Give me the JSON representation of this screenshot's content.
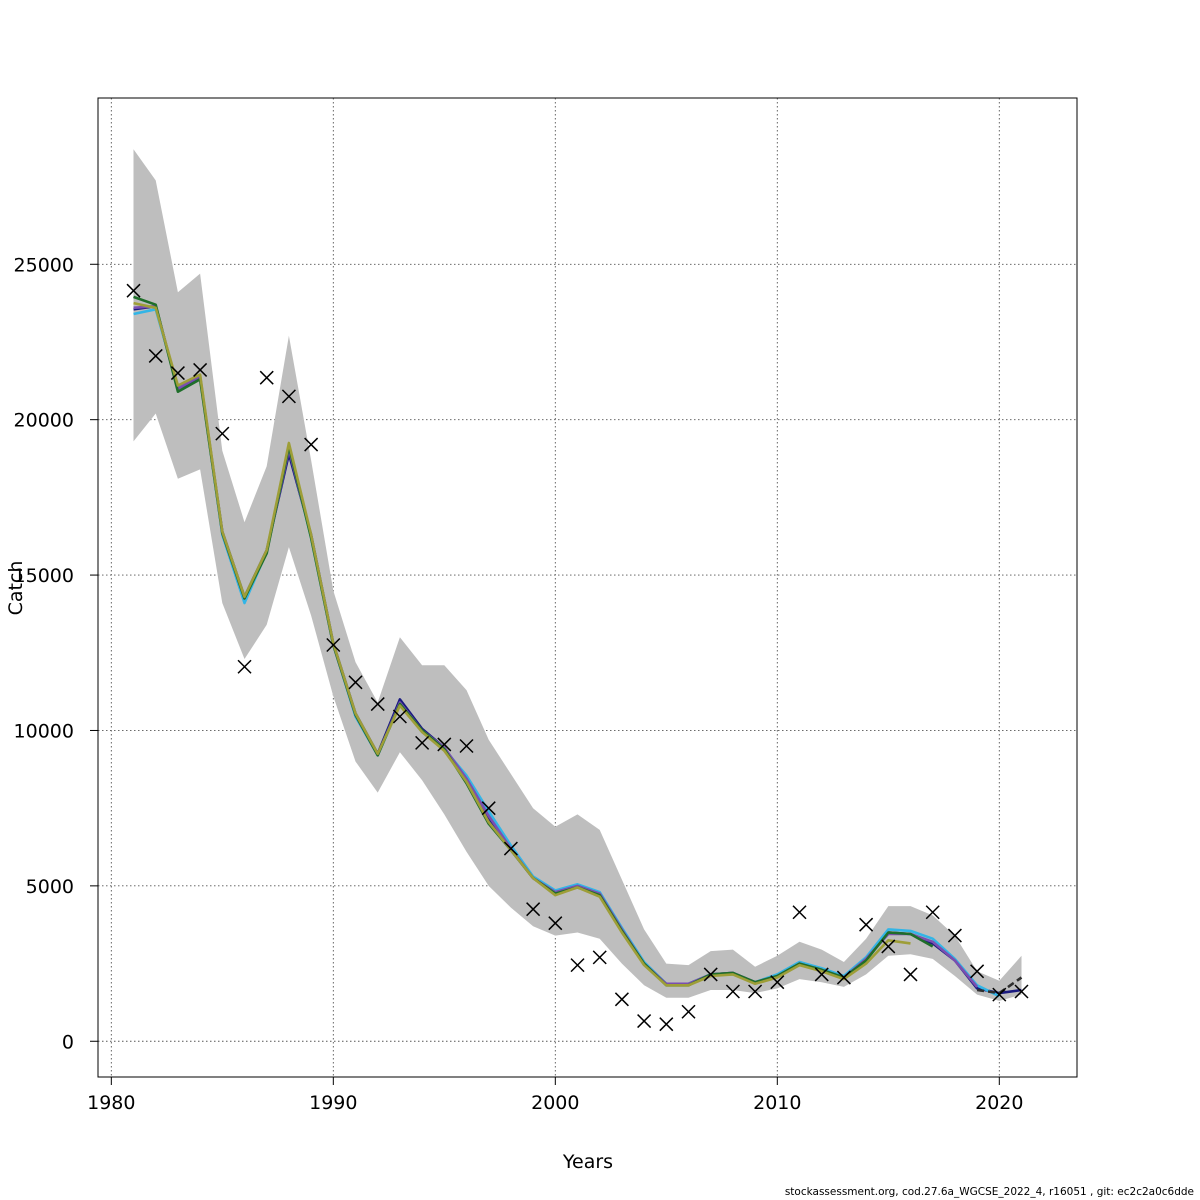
{
  "chart_data": {
    "type": "line",
    "title": "",
    "xlabel": "Years",
    "ylabel": "Catch",
    "xlim": [
      1980,
      2023
    ],
    "ylim": [
      -1100,
      30000
    ],
    "grid": true,
    "x_ticks": [
      1980,
      1990,
      2000,
      2010,
      2020
    ],
    "y_ticks": [
      0,
      5000,
      10000,
      15000,
      20000,
      25000
    ],
    "band": {
      "x": [
        1981,
        1982,
        1983,
        1984,
        1985,
        1986,
        1987,
        1988,
        1989,
        1990,
        1991,
        1992,
        1993,
        1994,
        1995,
        1996,
        1997,
        1998,
        1999,
        2000,
        2001,
        2002,
        2003,
        2004,
        2005,
        2006,
        2007,
        2008,
        2009,
        2010,
        2011,
        2012,
        2013,
        2014,
        2015,
        2016,
        2017,
        2018,
        2019,
        2020,
        2021
      ],
      "upper": [
        28700,
        27700,
        24100,
        24700,
        19000,
        16700,
        18500,
        22700,
        18700,
        14500,
        12200,
        10900,
        13000,
        12100,
        12100,
        11300,
        9700,
        8600,
        7500,
        6900,
        7300,
        6800,
        5200,
        3600,
        2500,
        2450,
        2900,
        2950,
        2400,
        2750,
        3200,
        2950,
        2550,
        3300,
        4350,
        4350,
        4050,
        3400,
        2250,
        1950,
        2750
      ],
      "lower": [
        19300,
        20200,
        18100,
        18400,
        14100,
        12300,
        13400,
        15900,
        13700,
        11100,
        9000,
        8000,
        9300,
        8400,
        7300,
        6100,
        5000,
        4300,
        3700,
        3400,
        3500,
        3300,
        2500,
        1800,
        1400,
        1400,
        1650,
        1650,
        1550,
        1700,
        2000,
        1900,
        1750,
        2150,
        2750,
        2800,
        2650,
        2100,
        1500,
        1300,
        1500
      ]
    },
    "series": [
      {
        "color": "#1a1a80",
        "x": [
          1981,
          1982,
          1983,
          1984,
          1985,
          1986,
          1987,
          1988,
          1989,
          1990,
          1991,
          1992,
          1993,
          1994,
          1995,
          1996,
          1997,
          1998,
          1999,
          2000,
          2001,
          2002,
          2003,
          2004,
          2005,
          2006,
          2007,
          2008,
          2009,
          2010,
          2011,
          2012,
          2013,
          2014,
          2015,
          2016,
          2017,
          2018,
          2019,
          2020,
          2021
        ],
        "y": [
          23550,
          23650,
          21000,
          21350,
          16400,
          14300,
          15800,
          18900,
          16300,
          12800,
          10550,
          9250,
          11000,
          10050,
          9450,
          8400,
          7150,
          6150,
          5250,
          4750,
          5000,
          4700,
          3550,
          2500,
          1850,
          1850,
          2150,
          2200,
          1900,
          2100,
          2500,
          2300,
          2050,
          2650,
          3500,
          3450,
          3150,
          2600,
          1700,
          1550,
          1650
        ]
      },
      {
        "color": "#33b5e6",
        "x": [
          1981,
          1982,
          1983,
          1984,
          1985,
          1986,
          1987,
          1988,
          1989,
          1990,
          1991,
          1992,
          1993,
          1994,
          1995,
          1996,
          1997,
          1998,
          1999,
          2000,
          2001,
          2002,
          2003,
          2004,
          2005,
          2006,
          2007,
          2008,
          2009,
          2010,
          2011,
          2012,
          2013,
          2014,
          2015,
          2016,
          2017,
          2018,
          2019,
          2020
        ],
        "y": [
          23400,
          23550,
          21050,
          21400,
          16300,
          14100,
          15750,
          19100,
          16200,
          12750,
          10450,
          9200,
          10850,
          9950,
          9400,
          8550,
          7400,
          6300,
          5300,
          4850,
          5050,
          4800,
          3650,
          2550,
          1850,
          1850,
          2150,
          2150,
          1900,
          2150,
          2550,
          2350,
          2100,
          2700,
          3600,
          3550,
          3300,
          2650,
          1800,
          1450
        ]
      },
      {
        "color": "#7a4fb0",
        "x": [
          1981,
          1982,
          1983,
          1984,
          1985,
          1986,
          1987,
          1988,
          1989,
          1990,
          1991,
          1992,
          1993,
          1994,
          1995,
          1996,
          1997,
          1998,
          1999,
          2000,
          2001,
          2002,
          2003,
          2004,
          2005,
          2006,
          2007,
          2008,
          2009,
          2010,
          2011,
          2012,
          2013,
          2014,
          2015,
          2016,
          2017,
          2018,
          2019
        ],
        "y": [
          23600,
          23650,
          21000,
          21400,
          16350,
          14250,
          15750,
          19050,
          16250,
          12750,
          10500,
          9200,
          10900,
          10000,
          9450,
          8450,
          7250,
          6200,
          5250,
          4800,
          5000,
          4750,
          3600,
          2500,
          1850,
          1850,
          2150,
          2200,
          1900,
          2100,
          2500,
          2300,
          2050,
          2650,
          3450,
          3450,
          3200,
          2600,
          1750
        ]
      },
      {
        "color": "#1f6e2a",
        "x": [
          1981,
          1982,
          1983,
          1984,
          1985,
          1986,
          1987,
          1988,
          1989,
          1990,
          1991,
          1992,
          1993,
          1994,
          1995,
          1996,
          1997,
          1998,
          1999,
          2000,
          2001,
          2002,
          2003,
          2004,
          2005,
          2006,
          2007,
          2008,
          2009,
          2010,
          2011,
          2012,
          2013,
          2014,
          2015,
          2016,
          2017
        ],
        "y": [
          23950,
          23700,
          20900,
          21300,
          16350,
          14250,
          15700,
          19150,
          16200,
          12750,
          10500,
          9200,
          10850,
          10000,
          9400,
          8300,
          7000,
          6150,
          5250,
          4750,
          4950,
          4700,
          3550,
          2500,
          1800,
          1800,
          2150,
          2200,
          1900,
          2100,
          2500,
          2300,
          2050,
          2600,
          3500,
          3450,
          3050
        ]
      },
      {
        "color": "#9e9e38",
        "x": [
          1981,
          1982,
          1983,
          1984,
          1985,
          1986,
          1987,
          1988,
          1989,
          1990,
          1991,
          1992,
          1993,
          1994,
          1995,
          1996,
          1997,
          1998,
          1999,
          2000,
          2001,
          2002,
          2003,
          2004,
          2005,
          2006,
          2007,
          2008,
          2009,
          2010,
          2011,
          2012,
          2013,
          2014,
          2015,
          2016
        ],
        "y": [
          23750,
          23600,
          21100,
          21450,
          16400,
          14300,
          15800,
          19250,
          16300,
          12800,
          10550,
          9250,
          10800,
          9950,
          9350,
          8350,
          7050,
          6150,
          5250,
          4700,
          4950,
          4650,
          3500,
          2450,
          1800,
          1800,
          2100,
          2150,
          1850,
          2050,
          2450,
          2250,
          2000,
          2500,
          3250,
          3150
        ]
      },
      {
        "color": "#2f2f2f",
        "dashed": true,
        "x": [
          2019,
          2020,
          2021
        ],
        "y": [
          1650,
          1550,
          2050
        ]
      }
    ],
    "observations": {
      "marker": "x",
      "x": [
        1981,
        1982,
        1983,
        1984,
        1985,
        1986,
        1987,
        1988,
        1989,
        1990,
        1991,
        1992,
        1993,
        1994,
        1995,
        1996,
        1997,
        1998,
        1999,
        2000,
        2001,
        2002,
        2003,
        2004,
        2005,
        2006,
        2007,
        2008,
        2009,
        2010,
        2011,
        2012,
        2013,
        2014,
        2015,
        2016,
        2017,
        2018,
        2019,
        2020,
        2021
      ],
      "y": [
        24150,
        22050,
        21500,
        21600,
        19550,
        12050,
        21350,
        20750,
        19200,
        12750,
        11550,
        10850,
        10450,
        9600,
        9550,
        9500,
        7500,
        6200,
        4250,
        3800,
        2450,
        2700,
        1350,
        650,
        550,
        950,
        2150,
        1600,
        1600,
        1900,
        4150,
        2150,
        2050,
        3750,
        3050,
        2150,
        4150,
        3400,
        2250,
        1500,
        1600
      ]
    }
  },
  "footer": {
    "text": "stockassessment.org, cod.27.6a_WGCSE_2022_4, r16051 , git: ec2c2a0c6dde"
  }
}
